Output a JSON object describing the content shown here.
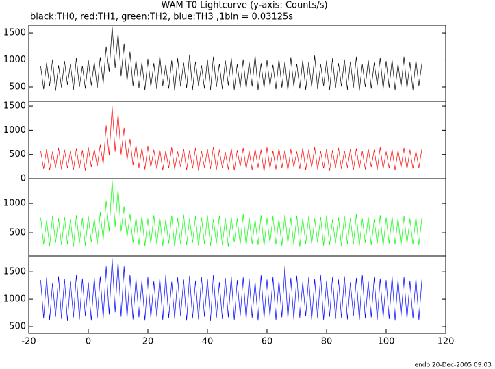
{
  "chart_data": {
    "type": "line",
    "title": "WAM T0 Lightcurve (y-axis: Counts/s)",
    "subtitle": "black:TH0, red:TH1, green:TH2, blue:TH3 ,1bin = 0.03125s",
    "footer": "endo 20-Dec-2005 09:03",
    "xlim": [
      -20,
      120
    ],
    "xticks": [
      -20,
      0,
      20,
      40,
      60,
      80,
      100,
      120
    ],
    "x": [
      -16,
      -15,
      -14,
      -13,
      -12,
      -11,
      -10,
      -9,
      -8,
      -7,
      -6,
      -5,
      -4,
      -3,
      -2,
      -1,
      0,
      1,
      2,
      3,
      4,
      5,
      6,
      7,
      8,
      9,
      10,
      11,
      12,
      13,
      14,
      15,
      16,
      17,
      18,
      19,
      20,
      21,
      22,
      23,
      24,
      25,
      26,
      27,
      28,
      29,
      30,
      31,
      32,
      33,
      34,
      35,
      36,
      37,
      38,
      39,
      40,
      41,
      42,
      43,
      44,
      45,
      46,
      47,
      48,
      49,
      50,
      51,
      52,
      53,
      54,
      55,
      56,
      57,
      58,
      59,
      60,
      61,
      62,
      63,
      64,
      65,
      66,
      67,
      68,
      69,
      70,
      71,
      72,
      73,
      74,
      75,
      76,
      77,
      78,
      79,
      80,
      81,
      82,
      83,
      84,
      85,
      86,
      87,
      88,
      89,
      90,
      91,
      92,
      93,
      94,
      95,
      96,
      97,
      98,
      99,
      100,
      101,
      102,
      103,
      104,
      105,
      106,
      107,
      108,
      109,
      110,
      111,
      112
    ],
    "panels": [
      {
        "ylim": [
          234,
          1640
        ],
        "yticks": [
          500,
          1000,
          1500
        ],
        "series": [
          {
            "color": "#000000",
            "values": [
              880,
              460,
              950,
              520,
              1010,
              430,
              900,
              490,
              980,
              540,
              920,
              450,
              1040,
              500,
              890,
              470,
              1000,
              530,
              960,
              480,
              1050,
              560,
              1250,
              780,
              1620,
              850,
              1500,
              700,
              1300,
              600,
              1150,
              520,
              1000,
              480,
              960,
              440,
              1020,
              500,
              940,
              460,
              1080,
              520,
              910,
              470,
              990,
              430,
              1030,
              510,
              950,
              480,
              1100,
              450,
              970,
              520,
              900,
              470,
              1010,
              440,
              1060,
              500,
              930,
              460,
              990,
              530,
              1040,
              450,
              920,
              490,
              1010,
              470,
              960,
              510,
              1090,
              440,
              940,
              480,
              1000,
              520,
              910,
              460,
              1020,
              490,
              970,
              430,
              1050,
              510,
              930,
              470,
              1000,
              450,
              960,
              500,
              1080,
              460,
              920,
              520,
              990,
              440,
              1030,
              480,
              940,
              510,
              1010,
              450,
              970,
              490,
              1060,
              430,
              920,
              500,
              1000,
              470,
              950,
              530,
              1040,
              460,
              980,
              490,
              1010,
              440,
              930,
              500,
              1060,
              470,
              960,
              450,
              1000,
              520,
              940
            ]
          }
        ]
      },
      {
        "ylim": [
          0,
          1600
        ],
        "yticks": [
          0,
          500,
          1000,
          1500
        ],
        "series": [
          {
            "color": "#ff0000",
            "values": [
              580,
              200,
              620,
              170,
              560,
              230,
              640,
              190,
              600,
              220,
              570,
              180,
              630,
              210,
              590,
              160,
              650,
              240,
              610,
              260,
              700,
              300,
              1100,
              480,
              1500,
              560,
              1350,
              500,
              1050,
              380,
              820,
              280,
              700,
              220,
              640,
              190,
              680,
              230,
              600,
              200,
              610,
              170,
              580,
              220,
              650,
              190,
              560,
              240,
              620,
              180,
              590,
              210,
              640,
              160,
              570,
              230,
              610,
              200,
              660,
              180,
              600,
              220,
              550,
              190,
              630,
              170,
              590,
              250,
              640,
              200,
              570,
              180,
              620,
              230,
              600,
              140,
              650,
              210,
              580,
              190,
              630,
              220,
              590,
              170,
              610,
              240,
              560,
              200,
              640,
              180,
              600,
              230,
              650,
              190,
              570,
              210,
              620,
              160,
              590,
              220,
              640,
              200,
              580,
              230,
              610,
              170,
              630,
              210,
              570,
              190,
              620,
              240,
              600,
              180,
              650,
              200,
              560,
              220,
              610,
              170,
              590,
              230,
              640,
              190,
              600,
              210,
              570,
              220,
              620
            ]
          }
        ]
      },
      {
        "ylim": [
          105,
          1420
        ],
        "yticks": [
          500,
          1000
        ],
        "series": [
          {
            "color": "#00ff00",
            "values": [
              760,
              300,
              720,
              270,
              790,
              330,
              740,
              290,
              770,
              310,
              730,
              260,
              800,
              320,
              750,
              280,
              780,
              340,
              740,
              300,
              850,
              380,
              1050,
              520,
              1400,
              600,
              1250,
              520,
              950,
              420,
              820,
              330,
              760,
              290,
              790,
              270,
              740,
              310,
              800,
              300,
              770,
              280,
              730,
              320,
              790,
              260,
              750,
              300,
              810,
              290,
              740,
              330,
              780,
              270,
              760,
              310,
              800,
              280,
              730,
              320,
              790,
              290,
              750,
              260,
              770,
              340,
              740,
              300,
              820,
              280,
              760,
              310,
              730,
              290,
              800,
              270,
              750,
              330,
              780,
              300,
              740,
              280,
              810,
              320,
              760,
              290,
              790,
              260,
              750,
              310,
              780,
              300,
              740,
              330,
              770,
              280,
              800,
              290,
              730,
              320,
              760,
              270,
              790,
              310,
              750,
              300,
              820,
              280,
              740,
              330,
              770,
              290,
              730,
              310,
              800,
              270,
              760,
              320,
              780,
              300,
              750,
              280,
              790,
              310,
              740,
              300,
              770,
              290,
              760
            ]
          }
        ]
      },
      {
        "ylim": [
          375,
          1790
        ],
        "yticks": [
          500,
          1000,
          1500
        ],
        "series": [
          {
            "color": "#0000ff",
            "values": [
              1350,
              650,
              1400,
              620,
              1300,
              680,
              1420,
              640,
              1370,
              600,
              1330,
              670,
              1450,
              630,
              1380,
              690,
              1310,
              610,
              1400,
              660,
              1420,
              640,
              1600,
              720,
              1750,
              760,
              1700,
              680,
              1600,
              650,
              1450,
              630,
              1380,
              670,
              1350,
              610,
              1410,
              650,
              1330,
              680,
              1390,
              620,
              1440,
              660,
              1320,
              640,
              1400,
              690,
              1360,
              610,
              1430,
              650,
              1340,
              630,
              1410,
              680,
              1370,
              600,
              1450,
              660,
              1310,
              640,
              1390,
              670,
              1420,
              620,
              1350,
              690,
              1400,
              630,
              1380,
              660,
              1330,
              610,
              1440,
              650,
              1360,
              680,
              1410,
              620,
              1350,
              670,
              1600,
              640,
              1390,
              630,
              1430,
              660,
              1320,
              690,
              1400,
              610,
              1370,
              650,
              1440,
              620,
              1340,
              680,
              1410,
              640,
              1360,
              660,
              1420,
              630,
              1310,
              690,
              1390,
              610,
              1450,
              650,
              1330,
              670,
              1400,
              620,
              1380,
              660,
              1350,
              640,
              1430,
              610,
              1370,
              680,
              1410,
              630,
              1340,
              650,
              1390,
              620,
              1360
            ]
          }
        ]
      }
    ]
  }
}
